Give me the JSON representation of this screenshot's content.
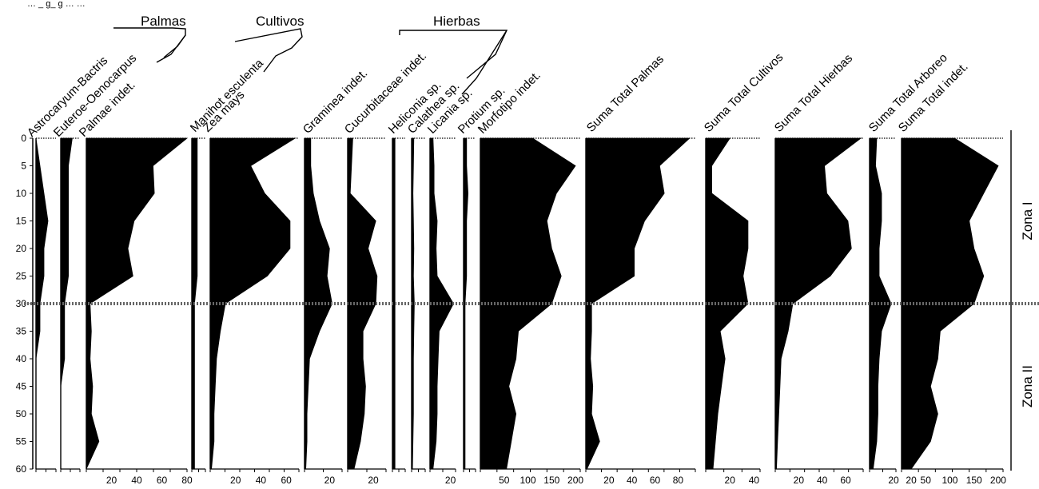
{
  "figure": {
    "caption_fragment": "… _ g_ g … …",
    "depth_axis": {
      "min": 0,
      "max": 60,
      "ticks": [
        0,
        5,
        10,
        15,
        20,
        25,
        30,
        35,
        40,
        45,
        50,
        55,
        60
      ]
    },
    "zone_boundary_depth": 30,
    "zones": [
      {
        "label": "Zona I",
        "from": 0,
        "to": 30
      },
      {
        "label": "Zona II",
        "from": 30,
        "to": 60
      }
    ],
    "groups": [
      {
        "label": "Palmas"
      },
      {
        "label": "Cultivos"
      },
      {
        "label": "Hierbas"
      }
    ],
    "fill_color": "#000000",
    "boundary_color": "#666666"
  },
  "chart_data": {
    "type": "area",
    "depth_unit": "",
    "depths": [
      0,
      5,
      10,
      15,
      20,
      25,
      30,
      35,
      40,
      45,
      50,
      55,
      60
    ],
    "series": [
      {
        "name": "Astrocaryum-Bactris",
        "xlim": [
          0,
          5
        ],
        "ticks": [],
        "values": [
          0,
          1,
          2,
          3,
          2,
          2,
          1,
          1,
          0,
          0,
          0,
          0,
          0
        ]
      },
      {
        "name": "Euteroe-Oenocarpus",
        "xlim": [
          0,
          5
        ],
        "ticks": [],
        "values": [
          3,
          2,
          2,
          2,
          2,
          2,
          1,
          1,
          1,
          0,
          0,
          0,
          0
        ]
      },
      {
        "name": "Palmae indet.",
        "xlim": [
          0,
          80
        ],
        "ticks": [
          "20",
          "40",
          "60",
          "80"
        ],
        "values": [
          80,
          53,
          54,
          38,
          33,
          37,
          3,
          4,
          3,
          5,
          4,
          10,
          0
        ]
      },
      {
        "name": "Manihot esculenta",
        "xlim": [
          0,
          5
        ],
        "ticks": [],
        "values": [
          2,
          2,
          2,
          2,
          2,
          2,
          1,
          1,
          1,
          1,
          1,
          1,
          1
        ]
      },
      {
        "name": "Zea mays",
        "xlim": [
          0,
          70
        ],
        "ticks": [
          "20",
          "40",
          "60"
        ],
        "values": [
          67,
          32,
          43,
          63,
          63,
          45,
          12,
          8,
          5,
          4,
          3,
          3,
          1
        ]
      },
      {
        "name": "Graminea indet.",
        "xlim": [
          0,
          30
        ],
        "ticks": [
          "20"
        ],
        "values": [
          5,
          5,
          7,
          12,
          20,
          18,
          22,
          12,
          4,
          3,
          2,
          2,
          1
        ]
      },
      {
        "name": "Cucurbitaceae indet.",
        "xlim": [
          0,
          30
        ],
        "ticks": [
          "20"
        ],
        "values": [
          4,
          3,
          2,
          22,
          16,
          23,
          22,
          12,
          12,
          14,
          13,
          10,
          5
        ]
      },
      {
        "name": "Heliconia sp.",
        "xlim": [
          0,
          5
        ],
        "ticks": [],
        "values": [
          1,
          1,
          1,
          1,
          1,
          1,
          1,
          1,
          1,
          1,
          1,
          1,
          1
        ]
      },
      {
        "name": "Calathea sp.",
        "xlim": [
          0,
          30
        ],
        "ticks": [],
        "values": [
          5,
          4,
          3,
          4,
          5,
          4,
          6,
          5,
          4,
          4,
          4,
          3,
          2
        ]
      },
      {
        "name": "Licania sp.",
        "xlim": [
          0,
          25
        ],
        "ticks": [
          "20"
        ],
        "values": [
          3,
          4,
          4,
          7,
          6,
          7,
          23,
          9,
          8,
          7,
          7,
          6,
          3
        ]
      },
      {
        "name": "Protium sp.",
        "xlim": [
          0,
          8
        ],
        "ticks": [],
        "values": [
          2,
          2,
          3,
          2,
          2,
          2,
          1,
          1,
          1,
          1,
          1,
          1,
          1
        ]
      },
      {
        "name": "Morfotipo indet.",
        "xlim": [
          0,
          210
        ],
        "ticks": [
          "50",
          "100",
          "150",
          "200"
        ],
        "values": [
          110,
          200,
          160,
          140,
          150,
          170,
          150,
          80,
          75,
          60,
          75,
          65,
          55
        ]
      },
      {
        "name": "Suma Total Palmas",
        "xlim": [
          0,
          95
        ],
        "ticks": [
          "20",
          "40",
          "60",
          "80"
        ],
        "values": [
          90,
          64,
          68,
          51,
          42,
          42,
          5,
          5,
          4,
          6,
          5,
          12,
          1
        ]
      },
      {
        "name": "Suma Total Cultivos",
        "xlim": [
          0,
          45
        ],
        "ticks": [
          "20",
          "40"
        ],
        "values": [
          20,
          5,
          5,
          35,
          35,
          31,
          35,
          12,
          16,
          13,
          10,
          8,
          6
        ]
      },
      {
        "name": "Suma Total Hierbas",
        "xlim": [
          0,
          75
        ],
        "ticks": [
          "20",
          "40",
          "60"
        ],
        "values": [
          73,
          42,
          44,
          62,
          65,
          47,
          15,
          11,
          5,
          4,
          3,
          2,
          1
        ]
      },
      {
        "name": "Suma Total Arboreo",
        "xlim": [
          0,
          22
        ],
        "ticks": [
          "20"
        ],
        "values": [
          6,
          5,
          10,
          10,
          8,
          8,
          18,
          10,
          8,
          7,
          7,
          6,
          3
        ]
      },
      {
        "name": "Suma Total indet.",
        "xlim": [
          0,
          210
        ],
        "ticks": [
          "20",
          "50",
          "100",
          "150",
          "200"
        ],
        "values": [
          110,
          200,
          170,
          140,
          150,
          170,
          150,
          80,
          75,
          60,
          75,
          60,
          20
        ]
      }
    ]
  }
}
